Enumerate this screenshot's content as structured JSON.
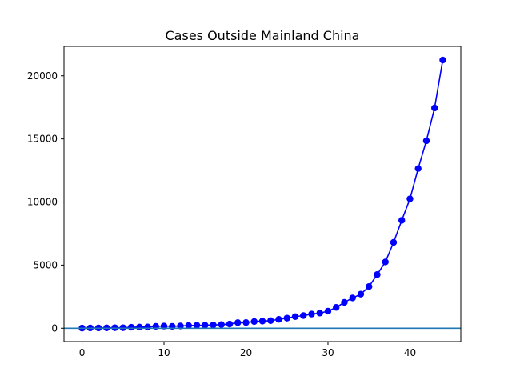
{
  "chart_data": {
    "type": "line",
    "title": "Cases Outside Mainland China",
    "xlabel": "",
    "ylabel": "",
    "xlim": [
      -2.2,
      46.2
    ],
    "ylim": [
      -1060,
      22330
    ],
    "xticks": [
      0,
      10,
      20,
      30,
      40
    ],
    "yticks": [
      0,
      5000,
      10000,
      15000,
      20000
    ],
    "grid": false,
    "legend": "none",
    "series": [
      {
        "color": "#0000ff",
        "marker": "circle",
        "x": [
          0,
          1,
          2,
          3,
          4,
          5,
          6,
          7,
          8,
          9,
          10,
          11,
          12,
          13,
          14,
          15,
          16,
          17,
          18,
          19,
          20,
          21,
          22,
          23,
          24,
          25,
          26,
          27,
          28,
          29,
          30,
          31,
          32,
          33,
          34,
          35,
          36,
          37,
          38,
          39,
          40,
          41,
          42,
          43,
          44
        ],
        "values": [
          10,
          20,
          20,
          30,
          40,
          40,
          80,
          90,
          100,
          150,
          170,
          150,
          180,
          210,
          230,
          240,
          260,
          290,
          330,
          440,
          450,
          530,
          560,
          600,
          700,
          800,
          920,
          1000,
          1120,
          1200,
          1350,
          1650,
          2050,
          2400,
          2700,
          3300,
          4250,
          5250,
          6800,
          8550,
          10250,
          12650,
          14850,
          17450,
          21250
        ]
      }
    ],
    "hlines": [
      {
        "y": 0,
        "color": "#1f77b4"
      }
    ]
  }
}
